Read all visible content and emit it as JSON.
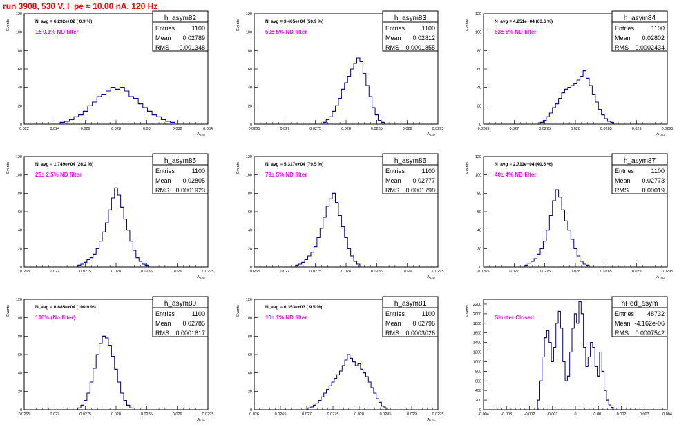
{
  "header": {
    "title": "run 3908,   530 V, I_pe ≈ 10.00 nA, 120 Hz"
  },
  "colors": {
    "accent_title": "#ff0000",
    "annotation": "#ff00ff",
    "histogram_line": "#000080",
    "frame": "#000000",
    "background": "#ffffff"
  },
  "chart_data": [
    {
      "type": "histogram",
      "name": "h_asym82",
      "navg": "N_avg = 6.292e+02 ( 0.9 %)",
      "note": "1± 0.1% ND filter",
      "ylabel": "Events",
      "xlabel": "A",
      "xlabel_sub": "LED",
      "xlim": [
        0.022,
        0.034
      ],
      "ylim": [
        0,
        120
      ],
      "xticks": [
        "0.022",
        "0.024",
        "0.026",
        "0.028",
        "0.03",
        "0.032",
        "0.034"
      ],
      "yticks": [
        "0",
        "20",
        "40",
        "60",
        "80",
        "100",
        "120"
      ],
      "stats": [
        [
          "Entries",
          "1100"
        ],
        [
          "Mean",
          "0.02789"
        ],
        [
          "RMS",
          "0.001348"
        ]
      ],
      "x": [
        0.0245,
        0.0248,
        0.0251,
        0.0254,
        0.0257,
        0.026,
        0.0263,
        0.0266,
        0.0269,
        0.0272,
        0.0275,
        0.0278,
        0.0281,
        0.0284,
        0.0287,
        0.029,
        0.0293,
        0.0296,
        0.0299,
        0.0302,
        0.0305,
        0.0308,
        0.0311,
        0.0314,
        0.0317
      ],
      "values": [
        2,
        3,
        5,
        8,
        10,
        14,
        20,
        24,
        30,
        32,
        36,
        40,
        38,
        40,
        36,
        30,
        28,
        22,
        18,
        14,
        10,
        8,
        5,
        3,
        2
      ]
    },
    {
      "type": "histogram",
      "name": "h_asym83",
      "navg": "N_avg = 3.405e+04 (50.9 %)",
      "note": "50± 5% ND filter",
      "ylabel": "Events",
      "xlabel": "A",
      "xlabel_sub": "LED",
      "xlim": [
        0.0265,
        0.0295
      ],
      "ylim": [
        0,
        120
      ],
      "xticks": [
        "0.0265",
        "0.027",
        "0.0275",
        "0.028",
        "0.0285",
        "0.029",
        "0.0295"
      ],
      "yticks": [
        "0",
        "20",
        "40",
        "60",
        "80",
        "100",
        "120"
      ],
      "stats": [
        [
          "Entries",
          "1100"
        ],
        [
          "Mean",
          "0.02812"
        ],
        [
          "RMS",
          "0.0001855"
        ]
      ],
      "x": [
        0.02765,
        0.0277,
        0.02775,
        0.0278,
        0.02785,
        0.0279,
        0.02795,
        0.028,
        0.02805,
        0.0281,
        0.02815,
        0.0282,
        0.02825,
        0.0283,
        0.02835,
        0.0284,
        0.02845,
        0.0285,
        0.02855,
        0.0286
      ],
      "values": [
        2,
        5,
        8,
        14,
        20,
        28,
        38,
        45,
        52,
        60,
        66,
        72,
        68,
        55,
        42,
        30,
        18,
        10,
        4,
        2
      ]
    },
    {
      "type": "histogram",
      "name": "h_asym84",
      "navg": "N_avg = 4.251e+04 (63.6 %)",
      "note": "63± 5% ND filter",
      "ylabel": "Events",
      "xlabel": "A",
      "xlabel_sub": "LED",
      "xlim": [
        0.0265,
        0.0295
      ],
      "ylim": [
        0,
        120
      ],
      "xticks": [
        "0.0265",
        "0.027",
        "0.0275",
        "0.028",
        "0.0285",
        "0.029",
        "0.0295"
      ],
      "yticks": [
        "0",
        "20",
        "40",
        "60",
        "80",
        "100",
        "120"
      ],
      "stats": [
        [
          "Entries",
          "1100"
        ],
        [
          "Mean",
          "0.02802"
        ],
        [
          "RMS",
          "0.0002434"
        ]
      ],
      "x": [
        0.02745,
        0.0275,
        0.02755,
        0.0276,
        0.02765,
        0.0277,
        0.02775,
        0.0278,
        0.02785,
        0.0279,
        0.02795,
        0.028,
        0.02805,
        0.0281,
        0.02815,
        0.0282,
        0.02825,
        0.0283,
        0.02835,
        0.0284,
        0.02845,
        0.0285,
        0.02855,
        0.0286
      ],
      "values": [
        2,
        4,
        8,
        12,
        18,
        22,
        28,
        34,
        38,
        40,
        42,
        44,
        48,
        52,
        58,
        50,
        42,
        32,
        24,
        16,
        10,
        6,
        3,
        2
      ]
    },
    {
      "type": "histogram",
      "name": "h_asym85",
      "navg": "N_avg = 1.749e+04 (26.2 %)",
      "note": "25± 2.5% ND filter",
      "ylabel": "Events",
      "xlabel": "A",
      "xlabel_sub": "LED",
      "xlim": [
        0.0265,
        0.0295
      ],
      "ylim": [
        0,
        120
      ],
      "xticks": [
        "0.0265",
        "0.027",
        "0.0275",
        "0.028",
        "0.0285",
        "0.029",
        "0.0295"
      ],
      "yticks": [
        "0",
        "20",
        "40",
        "60",
        "80",
        "100",
        "120"
      ],
      "stats": [
        [
          "Entries",
          "1100"
        ],
        [
          "Mean",
          "0.02805"
        ],
        [
          "RMS",
          "0.0001923"
        ]
      ],
      "x": [
        0.0274,
        0.02745,
        0.0275,
        0.02755,
        0.0276,
        0.02765,
        0.0277,
        0.02775,
        0.0278,
        0.02785,
        0.0279,
        0.02795,
        0.028,
        0.02805,
        0.0281,
        0.02815,
        0.0282,
        0.02825,
        0.0283,
        0.02835,
        0.0284,
        0.02845,
        0.0285
      ],
      "values": [
        2,
        3,
        5,
        8,
        10,
        14,
        20,
        28,
        38,
        48,
        62,
        75,
        86,
        78,
        65,
        52,
        40,
        28,
        18,
        10,
        6,
        3,
        2
      ]
    },
    {
      "type": "histogram",
      "name": "h_asym86",
      "navg": "N_avg = 5.317e+04 (79.5 %)",
      "note": "79± 5% ND filter",
      "ylabel": "Events",
      "xlabel": "A",
      "xlabel_sub": "LED",
      "xlim": [
        0.0265,
        0.0295
      ],
      "ylim": [
        0,
        120
      ],
      "xticks": [
        "0.0265",
        "0.027",
        "0.0275",
        "0.028",
        "0.0285",
        "0.029",
        "0.0295"
      ],
      "yticks": [
        "0",
        "20",
        "40",
        "60",
        "80",
        "100",
        "120"
      ],
      "stats": [
        [
          "Entries",
          "1100"
        ],
        [
          "Mean",
          "0.02777"
        ],
        [
          "RMS",
          "0.0001798"
        ]
      ],
      "x": [
        0.0272,
        0.02725,
        0.0273,
        0.02735,
        0.0274,
        0.02745,
        0.0275,
        0.02755,
        0.0276,
        0.02765,
        0.0277,
        0.02775,
        0.0278,
        0.02785,
        0.0279,
        0.02795,
        0.028,
        0.02805,
        0.0281,
        0.02815,
        0.0282
      ],
      "values": [
        2,
        3,
        5,
        8,
        12,
        16,
        22,
        32,
        42,
        54,
        66,
        74,
        80,
        70,
        56,
        44,
        32,
        20,
        12,
        6,
        3
      ]
    },
    {
      "type": "histogram",
      "name": "h_asym87",
      "navg": "N_avg = 2.711e+04 (40.6 %)",
      "note": "40± 4% ND filter",
      "ylabel": "Events",
      "xlabel": "A",
      "xlabel_sub": "LED",
      "xlim": [
        0.0265,
        0.0295
      ],
      "ylim": [
        0,
        120
      ],
      "xticks": [
        "0.0265",
        "0.027",
        "0.0275",
        "0.028",
        "0.0285",
        "0.029",
        "0.0295"
      ],
      "yticks": [
        "0",
        "20",
        "40",
        "60",
        "80",
        "100",
        "120"
      ],
      "stats": [
        [
          "Entries",
          "1100"
        ],
        [
          "Mean",
          "0.02773"
        ],
        [
          "RMS",
          "0.00019"
        ]
      ],
      "x": [
        0.0272,
        0.02725,
        0.0273,
        0.02735,
        0.0274,
        0.02745,
        0.0275,
        0.02755,
        0.0276,
        0.02765,
        0.0277,
        0.02775,
        0.0278,
        0.02785,
        0.0279,
        0.02795,
        0.028,
        0.02805,
        0.0281,
        0.02815,
        0.0282
      ],
      "values": [
        2,
        4,
        6,
        9,
        14,
        20,
        28,
        40,
        56,
        72,
        84,
        76,
        62,
        50,
        40,
        30,
        20,
        12,
        6,
        3,
        2
      ]
    },
    {
      "type": "histogram",
      "name": "h_asym80",
      "navg": "N_avg = 6.685e+04 (100.0 %)",
      "note": "100% (No filter)",
      "ylabel": "Events",
      "xlabel": "A",
      "xlabel_sub": "LED",
      "xlim": [
        0.0265,
        0.0295
      ],
      "ylim": [
        0,
        120
      ],
      "xticks": [
        "0.0265",
        "0.027",
        "0.0275",
        "0.028",
        "0.0285",
        "0.029",
        "0.0295"
      ],
      "yticks": [
        "0",
        "20",
        "40",
        "60",
        "80",
        "100",
        "120"
      ],
      "stats": [
        [
          "Entries",
          "1100"
        ],
        [
          "Mean",
          "0.02785"
        ],
        [
          "RMS",
          "0.0001617"
        ]
      ],
      "x": [
        0.0274,
        0.02745,
        0.0275,
        0.02755,
        0.0276,
        0.02765,
        0.0277,
        0.02775,
        0.0278,
        0.02785,
        0.0279,
        0.02795,
        0.028,
        0.02805,
        0.0281,
        0.02815,
        0.0282,
        0.02825
      ],
      "values": [
        2,
        5,
        10,
        18,
        30,
        45,
        60,
        72,
        80,
        78,
        70,
        58,
        44,
        30,
        18,
        10,
        5,
        2
      ]
    },
    {
      "type": "histogram",
      "name": "h_asym81",
      "navg": "N_avg = 6.353e+03 ( 9.5 %)",
      "note": "10± 1% ND filter",
      "ylabel": "Events",
      "xlabel": "A",
      "xlabel_sub": "LED",
      "xlim": [
        0.026,
        0.0295
      ],
      "ylim": [
        0,
        120
      ],
      "xticks": [
        "0.026",
        "0.0265",
        "0.027",
        "0.0275",
        "0.028",
        "0.0285",
        "0.029",
        "0.0295"
      ],
      "yticks": [
        "0",
        "20",
        "40",
        "60",
        "80",
        "100",
        "120"
      ],
      "stats": [
        [
          "Entries",
          "1100"
        ],
        [
          "Mean",
          "0.02796"
        ],
        [
          "RMS",
          "0.0003026"
        ]
      ],
      "x": [
        0.02705,
        0.0271,
        0.02715,
        0.0272,
        0.02725,
        0.0273,
        0.02735,
        0.0274,
        0.02745,
        0.0275,
        0.02755,
        0.0276,
        0.02765,
        0.0277,
        0.02775,
        0.0278,
        0.02785,
        0.0279,
        0.02795,
        0.028,
        0.02805,
        0.0281,
        0.02815,
        0.0282,
        0.02825,
        0.0283,
        0.02835,
        0.0284,
        0.02845,
        0.0285
      ],
      "values": [
        2,
        3,
        5,
        7,
        10,
        14,
        18,
        22,
        26,
        30,
        34,
        38,
        42,
        48,
        54,
        60,
        56,
        52,
        48,
        50,
        44,
        40,
        36,
        30,
        24,
        18,
        12,
        8,
        4,
        2
      ]
    },
    {
      "type": "histogram",
      "name": "hPed_asym",
      "navg": "",
      "note": "Shutter Closed",
      "ylabel": "Events",
      "xlabel": "",
      "xlabel_sub": "",
      "xlim": [
        -0.004,
        0.004
      ],
      "ylim": [
        0,
        2300
      ],
      "xticks": [
        "-0.004",
        "-0.003",
        "-0.002",
        "-0.001",
        "0",
        "0.001",
        "0.002",
        "0.003",
        "0.004"
      ],
      "yticks": [
        "0",
        "200",
        "400",
        "600",
        "800",
        "1000",
        "1200",
        "1400",
        "1600",
        "1800",
        "2000",
        "2200"
      ],
      "stats": [
        [
          "Entries",
          "48732"
        ],
        [
          "Mean",
          "-4.162e-06"
        ],
        [
          "RMS",
          "0.0007542"
        ]
      ],
      "x": [
        -0.0016,
        -0.0015,
        -0.0014,
        -0.0013,
        -0.0012,
        -0.0011,
        -0.001,
        -0.0009,
        -0.0008,
        -0.0007,
        -0.0006,
        -0.0005,
        -0.0004,
        -0.0003,
        -0.0002,
        -0.0001,
        0,
        0.0001,
        0.0002,
        0.0003,
        0.0004,
        0.0005,
        0.0006,
        0.0007,
        0.0008,
        0.0009,
        0.001,
        0.0011,
        0.0012,
        0.0013,
        0.0014,
        0.0015,
        0.0016
      ],
      "values": [
        200,
        600,
        1100,
        1500,
        1650,
        1400,
        1000,
        1300,
        1800,
        2050,
        1700,
        1000,
        600,
        700,
        1200,
        1700,
        2000,
        1800,
        2250,
        2000,
        1300,
        900,
        1100,
        1400,
        1300,
        900,
        700,
        1200,
        800,
        400,
        200,
        100,
        50
      ]
    }
  ]
}
